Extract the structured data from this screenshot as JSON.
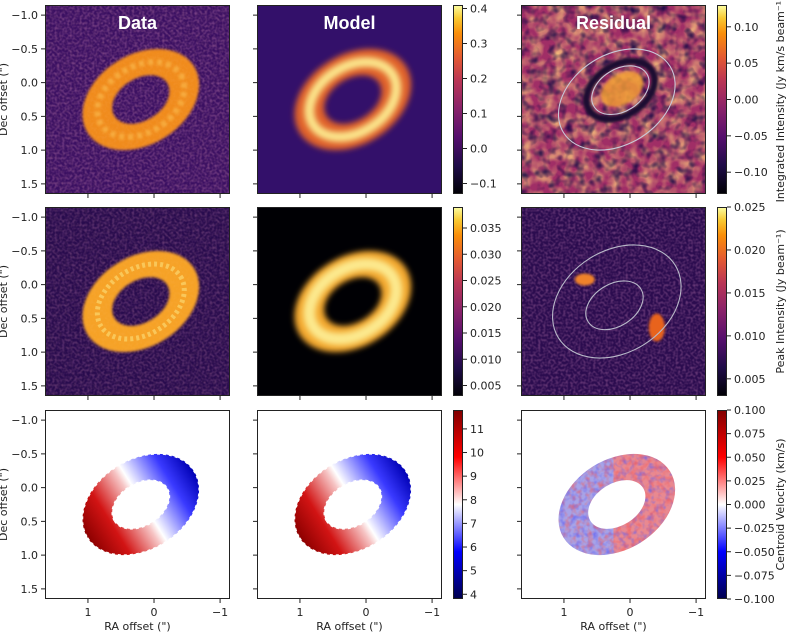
{
  "chart_data": {
    "type": "heatmap",
    "layout": "3x3 grid of images with a colorbar per row",
    "column_titles": [
      "Data",
      "Model",
      "Residual"
    ],
    "xlabel": "RA offset (\")",
    "ylabel": "Dec offset (\")",
    "x_ticks": [
      "1",
      "0",
      "−1"
    ],
    "y_ticks": [
      "−1.0",
      "−0.5",
      "0.0",
      "0.5",
      "1.0",
      "1.5"
    ],
    "xlim": [
      1.65,
      -1.15
    ],
    "ylim": [
      1.65,
      -1.15
    ],
    "rows": [
      {
        "quantity": "Integrated Intensity",
        "colorbar_label": "Integrated Intensity (Jy km/s beam⁻¹)",
        "main_colormap": "inferno",
        "main_ticks": [
          "−0.1",
          "0.0",
          "0.1",
          "0.2",
          "0.3",
          "0.4"
        ],
        "main_range": [
          -0.13,
          0.41
        ],
        "residual_colormap": "inferno",
        "residual_ticks": [
          "−0.10",
          "−0.05",
          "0.00",
          "0.05",
          "0.10"
        ],
        "residual_range": [
          -0.13,
          0.13
        ],
        "residual_contours": true
      },
      {
        "quantity": "Peak Intensity",
        "colorbar_label": "Peak Intensity (Jy beam⁻¹)",
        "main_colormap": "inferno",
        "main_ticks": [
          "0.005",
          "0.010",
          "0.015",
          "0.020",
          "0.025",
          "0.030",
          "0.035"
        ],
        "main_range": [
          0.003,
          0.039
        ],
        "residual_colormap": "inferno",
        "residual_ticks": [
          "0.005",
          "0.010",
          "0.015",
          "0.020",
          "0.025"
        ],
        "residual_range": [
          0.003,
          0.025
        ],
        "residual_contours": true
      },
      {
        "quantity": "Centroid Velocity",
        "colorbar_label": "Centroid Velocity (km/s)",
        "main_colormap": "seismic (blue-white-red)",
        "main_ticks": [
          "4",
          "5",
          "6",
          "7",
          "8",
          "9",
          "10",
          "11"
        ],
        "main_range": [
          3.8,
          11.8
        ],
        "residual_colormap": "seismic (blue-white-red)",
        "residual_ticks": [
          "−0.100",
          "−0.075",
          "−0.050",
          "−0.025",
          "0.000",
          "0.025",
          "0.050",
          "0.075",
          "0.100"
        ],
        "residual_range": [
          -0.1,
          0.1
        ],
        "residual_contours": false
      }
    ],
    "ring": {
      "center": [
        0.2,
        0.25
      ],
      "outer_semi_axes": [
        0.95,
        0.68
      ],
      "inner_semi_axes": [
        0.47,
        0.32
      ],
      "position_angle_deg": -32,
      "peak_integrated_intensity": 0.4,
      "peak_intensity": 0.035,
      "systemic_velocity": 7.6,
      "velocity_range": [
        4,
        11
      ]
    }
  }
}
